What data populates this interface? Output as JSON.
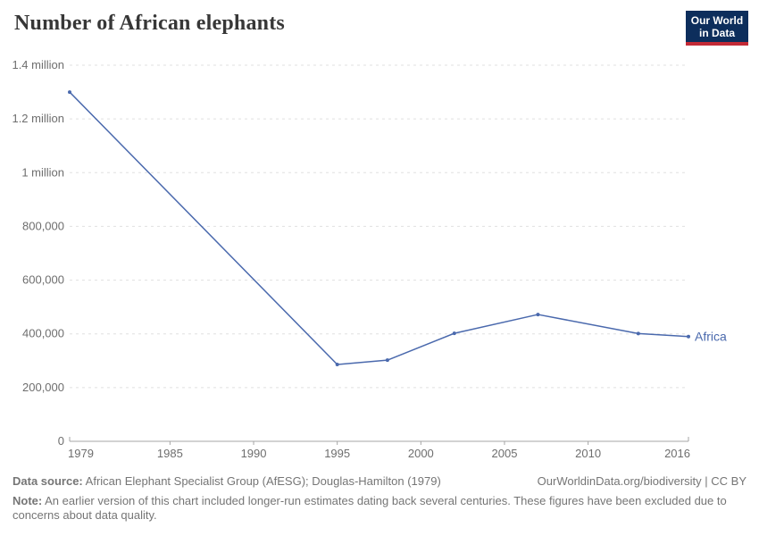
{
  "header": {
    "logo": {
      "line1": "Our World",
      "line2": "in Data",
      "bg_color": "#0d2e5c",
      "accent_color": "#c32a36"
    }
  },
  "chart_data": {
    "type": "line",
    "title": "Number of African elephants",
    "xlabel": "",
    "ylabel": "",
    "xlim": [
      1979,
      2016
    ],
    "ylim": [
      0,
      1400000
    ],
    "grid": "horizontal-dashed",
    "legend_position": "end-of-line-label",
    "x_ticks": [
      1979,
      1985,
      1990,
      1995,
      2000,
      2005,
      2010,
      2016
    ],
    "y_ticks": [
      {
        "v": 0,
        "label": "0"
      },
      {
        "v": 200000,
        "label": "200,000"
      },
      {
        "v": 400000,
        "label": "400,000"
      },
      {
        "v": 600000,
        "label": "600,000"
      },
      {
        "v": 800000,
        "label": "800,000"
      },
      {
        "v": 1000000,
        "label": "1 million"
      },
      {
        "v": 1200000,
        "label": "1.2 million"
      },
      {
        "v": 1400000,
        "label": "1.4 million"
      }
    ],
    "series": [
      {
        "name": "Africa",
        "color": "#4a69ad",
        "points": [
          {
            "year": 1979,
            "value": 1300000
          },
          {
            "year": 1995,
            "value": 286000
          },
          {
            "year": 1998,
            "value": 302000
          },
          {
            "year": 2002,
            "value": 402000
          },
          {
            "year": 2007,
            "value": 472000
          },
          {
            "year": 2013,
            "value": 401000
          },
          {
            "year": 2016,
            "value": 390000
          }
        ]
      }
    ],
    "axis_color": "#a6a6a6",
    "gridline_color": "#e0e0e0",
    "tick_label_color": "#6e6e6e"
  },
  "footer": {
    "data_source_label": "Data source:",
    "data_source": "African Elephant Specialist Group (AfESG); Douglas-Hamilton (1979)",
    "attribution": "OurWorldinData.org/biodiversity | CC BY",
    "note_label": "Note:",
    "note": "An earlier version of this chart included longer-run estimates dating back several centuries. These figures have been excluded due to concerns about data quality."
  }
}
